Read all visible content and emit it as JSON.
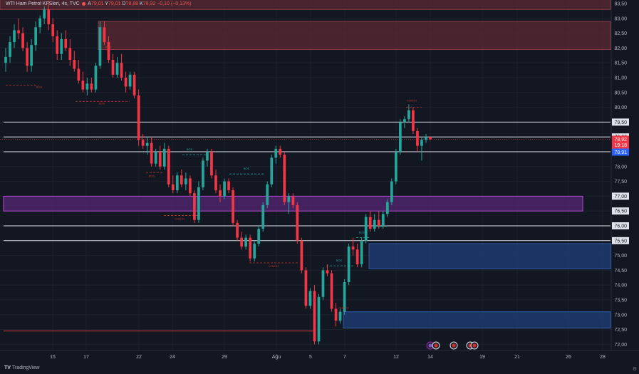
{
  "header": {
    "symbol": "WTI Ham Petrol KFSleri, 4s, TVC",
    "open_label": "A",
    "open_value": "79,01",
    "high_label": "Y",
    "high_value": "79,01",
    "low_label": "D",
    "low_value": "78,88",
    "close_label": "K",
    "close_value": "78,92",
    "change": "−0,10 (−0,13%)"
  },
  "price_axis": {
    "ticks": [
      "83,50",
      "83,00",
      "82,50",
      "82,00",
      "81,50",
      "81,00",
      "80,50",
      "80,00",
      "79,50",
      "79,00",
      "78,50",
      "78,00",
      "77,50",
      "77,00",
      "76,50",
      "76,00",
      "75,50",
      "75,00",
      "74,50",
      "74,00",
      "73,50",
      "73,00",
      "72,50",
      "72,00"
    ],
    "current_price": "78,92",
    "countdown": "19:18",
    "blue_price": "78,91",
    "line_labels": [
      "79,50",
      "79,00",
      "78,50",
      "77,00",
      "76,50",
      "76,00",
      "75,50"
    ]
  },
  "time_axis": {
    "labels": [
      "15",
      "17",
      "22",
      "24",
      "29",
      "Ağu",
      "5",
      "7",
      "12",
      "14",
      "19",
      "21",
      "26",
      "28"
    ]
  },
  "annotations": [
    "BOS",
    "BOS",
    "BOS",
    "CHoCH",
    "BOS",
    "CHoCH",
    "BOS",
    "CHoCH",
    "BOS",
    "CHoCH",
    "BOS",
    "CHoCH",
    "BOS"
  ],
  "colors": {
    "background": "#131722",
    "up": "#26a69a",
    "down": "#f23645",
    "supply_zone": "#5a2a33",
    "demand_zone": "#1e3a6e",
    "purple_zone": "#4a2466",
    "purple_border": "#b64bd6",
    "level_line": "#e0e3eb",
    "current_price_bg": "#f23645",
    "blue_label_bg": "#2962ff"
  },
  "footer": {
    "brand": "TradingView",
    "brand_mark": "TV"
  },
  "chart_data": {
    "type": "candlestick",
    "title": "WTI Ham Petrol KFSleri, 4s, TVC",
    "ylim": [
      71.85,
      83.85
    ],
    "x_labels": [
      "15",
      "17",
      "22",
      "24",
      "29",
      "Ağu",
      "5",
      "7",
      "12",
      "14",
      "19",
      "21",
      "26",
      "28"
    ],
    "horizontal_levels": [
      79.5,
      79.0,
      78.5,
      76.0,
      75.5
    ],
    "zones": [
      {
        "kind": "supply",
        "low": 83.3,
        "high": 83.85
      },
      {
        "kind": "supply",
        "low": 81.95,
        "high": 82.9
      },
      {
        "kind": "purple",
        "low": 76.5,
        "high": 77.0
      },
      {
        "kind": "demand",
        "low": 74.55,
        "high": 75.4
      },
      {
        "kind": "demand",
        "low": 72.55,
        "high": 73.1
      }
    ],
    "current_price": 78.92,
    "candles": [
      [
        81.5,
        82.0,
        81.2,
        81.7
      ],
      [
        81.7,
        82.4,
        81.5,
        82.2
      ],
      [
        82.2,
        82.8,
        82.0,
        82.6
      ],
      [
        82.6,
        83.0,
        82.3,
        82.5
      ],
      [
        82.5,
        82.7,
        81.9,
        82.0
      ],
      [
        82.0,
        82.2,
        81.2,
        81.4
      ],
      [
        81.4,
        82.3,
        81.2,
        82.1
      ],
      [
        82.1,
        82.9,
        81.9,
        82.7
      ],
      [
        82.7,
        83.1,
        82.5,
        83.0
      ],
      [
        83.0,
        83.4,
        82.8,
        83.3
      ],
      [
        83.3,
        83.6,
        82.6,
        82.8
      ],
      [
        82.8,
        83.0,
        82.2,
        82.4
      ],
      [
        82.4,
        82.6,
        81.6,
        81.8
      ],
      [
        81.8,
        82.5,
        81.6,
        82.3
      ],
      [
        82.3,
        82.6,
        81.9,
        82.0
      ],
      [
        82.0,
        82.3,
        81.4,
        81.6
      ],
      [
        81.6,
        81.9,
        81.2,
        81.3
      ],
      [
        81.3,
        81.6,
        80.8,
        80.9
      ],
      [
        80.9,
        81.2,
        80.5,
        80.6
      ],
      [
        80.6,
        81.0,
        80.4,
        80.8
      ],
      [
        80.8,
        81.0,
        80.5,
        80.6
      ],
      [
        80.6,
        81.5,
        80.5,
        81.4
      ],
      [
        81.4,
        82.9,
        81.3,
        82.7
      ],
      [
        82.7,
        82.9,
        82.1,
        82.2
      ],
      [
        82.2,
        82.4,
        81.5,
        81.6
      ],
      [
        81.6,
        81.8,
        81.0,
        81.1
      ],
      [
        81.1,
        81.7,
        81.0,
        81.5
      ],
      [
        81.5,
        81.8,
        80.9,
        81.0
      ],
      [
        81.0,
        81.2,
        80.5,
        80.7
      ],
      [
        80.7,
        81.2,
        80.6,
        81.1
      ],
      [
        81.1,
        81.2,
        80.3,
        80.4
      ],
      [
        80.4,
        80.6,
        78.7,
        78.9
      ],
      [
        78.9,
        79.1,
        78.6,
        78.7
      ],
      [
        78.7,
        79.0,
        78.4,
        78.8
      ],
      [
        78.8,
        79.0,
        78.0,
        78.1
      ],
      [
        78.1,
        78.6,
        78.0,
        78.5
      ],
      [
        78.5,
        78.7,
        77.9,
        78.0
      ],
      [
        78.0,
        78.8,
        77.9,
        78.6
      ],
      [
        78.6,
        78.7,
        77.3,
        77.4
      ],
      [
        77.4,
        77.7,
        77.1,
        77.2
      ],
      [
        77.2,
        77.8,
        77.1,
        77.7
      ],
      [
        77.7,
        77.9,
        77.3,
        77.4
      ],
      [
        77.4,
        77.8,
        77.2,
        77.6
      ],
      [
        77.6,
        77.7,
        77.0,
        77.1
      ],
      [
        77.1,
        77.2,
        76.1,
        76.2
      ],
      [
        76.2,
        77.5,
        76.1,
        77.3
      ],
      [
        77.3,
        78.3,
        77.2,
        78.2
      ],
      [
        78.2,
        78.6,
        78.0,
        78.5
      ],
      [
        78.5,
        78.6,
        77.6,
        77.7
      ],
      [
        77.7,
        77.9,
        77.1,
        77.2
      ],
      [
        77.2,
        77.4,
        76.8,
        77.0
      ],
      [
        77.0,
        77.6,
        76.9,
        77.5
      ],
      [
        77.5,
        77.6,
        77.1,
        77.2
      ],
      [
        77.2,
        77.3,
        76.0,
        76.1
      ],
      [
        76.1,
        76.2,
        75.5,
        75.6
      ],
      [
        75.6,
        75.8,
        75.2,
        75.3
      ],
      [
        75.3,
        75.7,
        75.2,
        75.6
      ],
      [
        75.6,
        75.7,
        74.8,
        74.9
      ],
      [
        74.9,
        75.5,
        74.8,
        75.4
      ],
      [
        75.4,
        76.0,
        75.3,
        75.9
      ],
      [
        75.9,
        76.8,
        75.8,
        76.7
      ],
      [
        76.7,
        77.5,
        76.6,
        77.4
      ],
      [
        77.4,
        78.4,
        77.3,
        78.3
      ],
      [
        78.3,
        78.7,
        78.1,
        78.6
      ],
      [
        78.6,
        78.7,
        78.3,
        78.4
      ],
      [
        78.4,
        78.5,
        76.7,
        76.8
      ],
      [
        76.8,
        77.1,
        76.4,
        77.0
      ],
      [
        77.0,
        77.1,
        76.6,
        76.7
      ],
      [
        76.7,
        76.8,
        75.4,
        75.5
      ],
      [
        75.5,
        75.6,
        74.4,
        74.5
      ],
      [
        74.5,
        74.6,
        73.2,
        73.3
      ],
      [
        73.3,
        73.9,
        73.2,
        73.8
      ],
      [
        73.8,
        74.0,
        72.0,
        72.1
      ],
      [
        72.1,
        73.7,
        72.0,
        73.6
      ],
      [
        73.6,
        74.6,
        73.5,
        74.5
      ],
      [
        74.5,
        74.7,
        74.3,
        74.4
      ],
      [
        74.4,
        74.5,
        73.1,
        73.2
      ],
      [
        73.2,
        73.4,
        72.6,
        72.8
      ],
      [
        72.8,
        73.2,
        72.7,
        73.1
      ],
      [
        73.1,
        74.2,
        73.0,
        74.1
      ],
      [
        74.1,
        75.4,
        74.0,
        75.3
      ],
      [
        75.3,
        75.6,
        75.0,
        75.2
      ],
      [
        75.2,
        75.4,
        74.6,
        74.7
      ],
      [
        74.7,
        75.6,
        74.6,
        75.5
      ],
      [
        75.5,
        76.4,
        75.4,
        76.3
      ],
      [
        76.3,
        76.5,
        75.8,
        75.9
      ],
      [
        75.9,
        76.4,
        75.8,
        76.2
      ],
      [
        76.2,
        76.5,
        75.9,
        76.0
      ],
      [
        76.0,
        76.5,
        75.9,
        76.4
      ],
      [
        76.4,
        76.9,
        76.3,
        76.8
      ],
      [
        76.8,
        77.6,
        76.7,
        77.5
      ],
      [
        77.5,
        78.6,
        77.4,
        78.5
      ],
      [
        78.5,
        79.6,
        78.4,
        79.5
      ],
      [
        79.5,
        79.7,
        79.3,
        79.6
      ],
      [
        79.6,
        80.1,
        79.5,
        79.9
      ],
      [
        79.9,
        80.0,
        79.1,
        79.2
      ],
      [
        79.2,
        79.3,
        78.5,
        78.7
      ],
      [
        78.7,
        79.0,
        78.2,
        78.9
      ],
      [
        78.9,
        79.1,
        78.8,
        79.0
      ],
      [
        79.0,
        79.0,
        78.88,
        78.92
      ]
    ]
  }
}
